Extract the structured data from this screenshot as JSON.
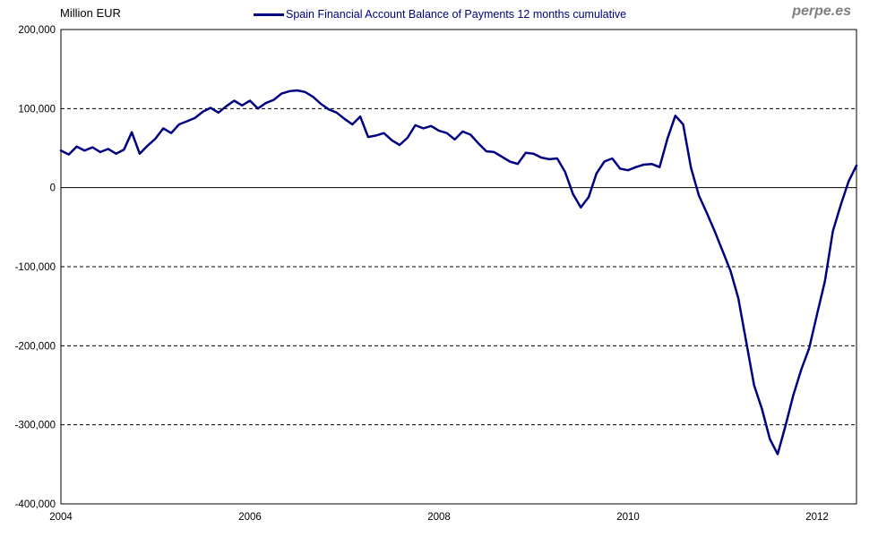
{
  "header": {
    "y_axis_title": "Million EUR",
    "legend_label": "Spain Financial Account Balance of Payments 12 months cumulative",
    "watermark": "perpe.es"
  },
  "colors": {
    "line": "#000080",
    "axis": "#000000",
    "grid": "#000000",
    "tick_text": "#000000",
    "watermark": "#808080",
    "background": "#ffffff"
  },
  "chart_data": {
    "type": "line",
    "title": "Spain Financial Account Balance of Payments 12 months cumulative",
    "ylabel": "Million EUR",
    "xlabel": "",
    "ylim": [
      -400000,
      200000
    ],
    "y_ticks": [
      200000,
      100000,
      0,
      -100000,
      -200000,
      -300000,
      -400000
    ],
    "grid": "horizontal dashed at each 100,000; solid line at 0; solid outer frame",
    "legend_position": "top-center",
    "frequency": "monthly",
    "x_start": "2004-01",
    "x_end": "2012-06",
    "x_tick_labels": [
      "2004",
      "2006",
      "2008",
      "2010",
      "2012"
    ],
    "x_tick_month_indices": [
      0,
      24,
      48,
      72,
      96
    ],
    "series": [
      {
        "name": "Spain Financial Account Balance of Payments 12 months cumulative",
        "color": "#000080",
        "values": [
          47000,
          42000,
          52000,
          47000,
          51000,
          45000,
          49000,
          43000,
          48000,
          70000,
          43000,
          53000,
          62000,
          75000,
          69000,
          80000,
          84000,
          88000,
          96000,
          101000,
          95000,
          103000,
          110000,
          104000,
          110000,
          100000,
          107000,
          111000,
          119000,
          122000,
          123000,
          121000,
          115000,
          106000,
          99000,
          95000,
          87000,
          80000,
          90000,
          64000,
          66000,
          69000,
          60000,
          54000,
          63000,
          79000,
          75000,
          78000,
          72000,
          69000,
          61000,
          71000,
          67000,
          56000,
          46000,
          45000,
          39000,
          33000,
          30000,
          44000,
          43000,
          38000,
          36000,
          37000,
          20000,
          -8000,
          -25000,
          -12000,
          18000,
          33000,
          37000,
          24000,
          22000,
          26000,
          29000,
          30000,
          26000,
          62000,
          91000,
          80000,
          25000,
          -10000,
          -32000,
          -55000,
          -80000,
          -105000,
          -140000,
          -195000,
          -250000,
          -280000,
          -318000,
          -337000,
          -301000,
          -262000,
          -230000,
          -203000,
          -160000,
          -118000,
          -55000,
          -22000,
          8000,
          28000
        ]
      }
    ]
  }
}
